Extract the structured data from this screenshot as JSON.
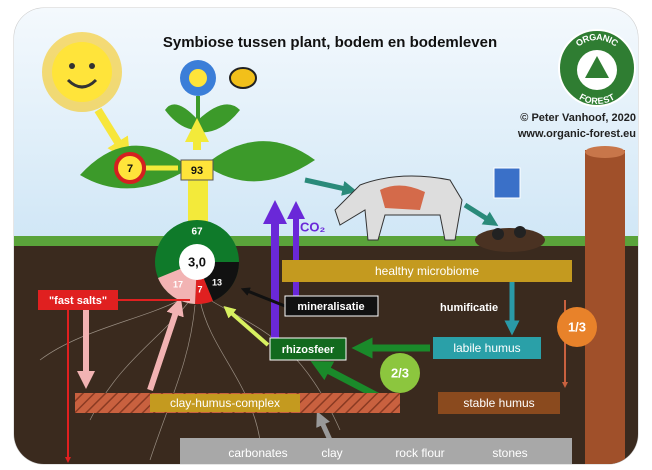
{
  "header": {
    "title": "Symbiose tussen plant, bodem en bodemleven",
    "credit": "© Peter Vanhoof, 2020",
    "website": "www.organic-forest.eu"
  },
  "logo": {
    "top": "ORGANIC",
    "bottom": "FOREST"
  },
  "plant": {
    "sun_clock": "7",
    "stem": "93",
    "co2": "CO₂"
  },
  "pie": {
    "top": "67",
    "center": "3,0",
    "pink": "17",
    "red": "7",
    "black": "13"
  },
  "labels": {
    "healthy_microbiome": "healthy microbiome",
    "mineralisatie": "mineralisatie",
    "humificatie": "humificatie",
    "rhizosfeer": "rhizosfeer",
    "labile_humus": "labile humus",
    "fast_salts": "\"fast salts\"",
    "clay_humus_complex": "clay-humus-complex",
    "stable_humus": "stable humus",
    "one_third": "1/3",
    "two_thirds": "2/3"
  },
  "minerals": [
    "carbonates",
    "clay",
    "rock flour",
    "stones"
  ]
}
